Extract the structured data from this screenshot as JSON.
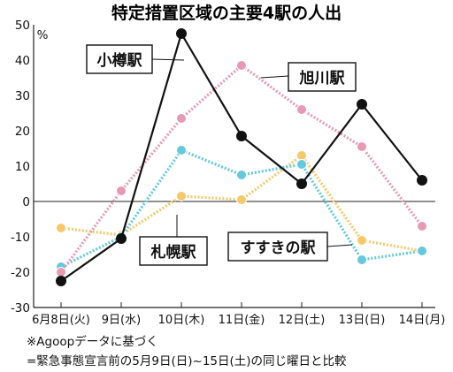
{
  "chart_data": {
    "type": "line",
    "title": "特定措置区域の主要4駅の人出",
    "unit": "%",
    "categories": [
      "6月8日(火)",
      "9日(水)",
      "10日(木)",
      "11日(金)",
      "12日(土)",
      "13日(日)",
      "14日(月)"
    ],
    "ylim": [
      -30,
      50
    ],
    "yticks": [
      50,
      40,
      30,
      20,
      10,
      0,
      -10,
      -20,
      -30
    ],
    "grid": false,
    "series": [
      {
        "name": "小樽駅",
        "color": "#111111",
        "values": [
          -22.5,
          -10.5,
          47.5,
          18.5,
          5,
          27.5,
          6
        ]
      },
      {
        "name": "旭川駅",
        "color": "#e79ab3",
        "values": [
          -20,
          3,
          23.5,
          38.5,
          26,
          15.5,
          -7
        ]
      },
      {
        "name": "札幌駅",
        "color": "#63c9dc",
        "values": [
          -18.5,
          -10,
          14.5,
          7.5,
          10.5,
          -16.5,
          -14
        ]
      },
      {
        "name": "すすきの駅",
        "color": "#f5c96a",
        "values": [
          -7.5,
          -9.5,
          1.5,
          0.5,
          13,
          -11,
          -14
        ]
      }
    ],
    "notes": [
      "※Agoopデータに基づく",
      "=緊急事態宣言前の5月9日(日)~15日(土)の同じ曜日と比較"
    ]
  }
}
